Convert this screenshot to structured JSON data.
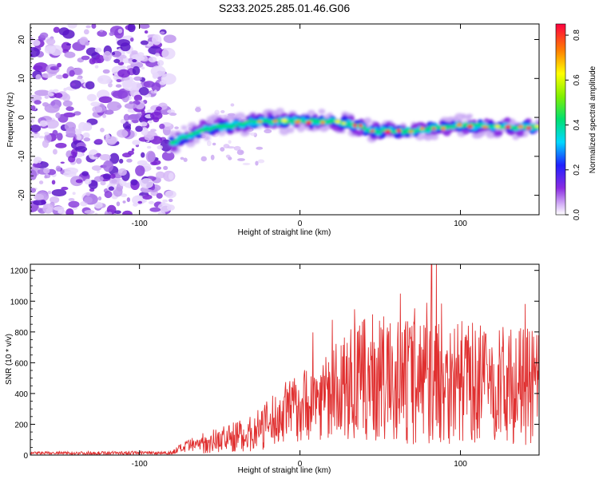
{
  "title": "S233.2025.285.01.46.G06",
  "colors": {
    "snr_line": "#e03030",
    "axis": "#000000"
  },
  "chart_data": [
    {
      "type": "heatmap",
      "title": "S233.2025.285.01.46.G06",
      "xlabel": "Height of straight line (km)",
      "ylabel": "Frequency (Hz)",
      "xlim": [
        -168,
        149
      ],
      "ylim": [
        -25,
        24
      ],
      "x_ticks": [
        -100,
        0,
        100
      ],
      "x_tick_labels": [
        "-100",
        "0",
        "100"
      ],
      "y_ticks": [
        -20,
        -10,
        0,
        10,
        20
      ],
      "y_tick_labels": [
        "-20",
        "-10",
        "0",
        "10",
        "20"
      ],
      "colorbar": {
        "label": "Normalized spectral amplitude",
        "range": [
          0,
          0.85
        ],
        "ticks": [
          0,
          0.2,
          0.4,
          0.6,
          0.8
        ],
        "tick_labels": [
          "0.0",
          "0.2",
          "0.4",
          "0.6",
          "0.8"
        ]
      },
      "noise_region_km": [
        -168,
        -80
      ],
      "ridge": [
        {
          "x": -80,
          "freq": -6.5
        },
        {
          "x": -60,
          "freq": -3.0
        },
        {
          "x": -40,
          "freq": -2.0
        },
        {
          "x": -30,
          "freq": -1.0
        },
        {
          "x": 0,
          "freq": -1.0
        },
        {
          "x": 20,
          "freq": -1.0
        },
        {
          "x": 35,
          "freq": -2.0
        },
        {
          "x": 45,
          "freq": -3.5
        },
        {
          "x": 70,
          "freq": -3.5
        },
        {
          "x": 100,
          "freq": -2.0
        },
        {
          "x": 130,
          "freq": -2.5
        },
        {
          "x": 149,
          "freq": -2.5
        }
      ]
    },
    {
      "type": "line",
      "xlabel": "Height of straight line (km)",
      "ylabel": "SNR (10 * v/v)",
      "xlim": [
        -168,
        149
      ],
      "ylim": [
        0,
        1240
      ],
      "x_ticks": [
        -100,
        0,
        100
      ],
      "x_tick_labels": [
        "-100",
        "0",
        "100"
      ],
      "y_ticks": [
        0,
        200,
        400,
        600,
        800,
        1000,
        1200
      ],
      "y_tick_labels": [
        "0",
        "200",
        "400",
        "600",
        "800",
        "1000",
        "1200"
      ],
      "series": [
        {
          "name": "SNR",
          "envelope": {
            "x": [
              -168,
              -80,
              -75,
              -60,
              -45,
              -30,
              -20,
              -10,
              0,
              10,
              20,
              30,
              45,
              60,
              80,
              100,
              120,
              149
            ],
            "mean": [
              12,
              15,
              40,
              80,
              110,
              140,
              200,
              260,
              320,
              360,
              400,
              450,
              500,
              470,
              500,
              480,
              460,
              440
            ],
            "amplitude": [
              10,
              12,
              30,
              70,
              90,
              120,
              160,
              200,
              230,
              260,
              300,
              360,
              420,
              420,
              450,
              400,
              380,
              380
            ]
          },
          "peak": {
            "x": 82,
            "value": 1240
          }
        }
      ]
    }
  ]
}
